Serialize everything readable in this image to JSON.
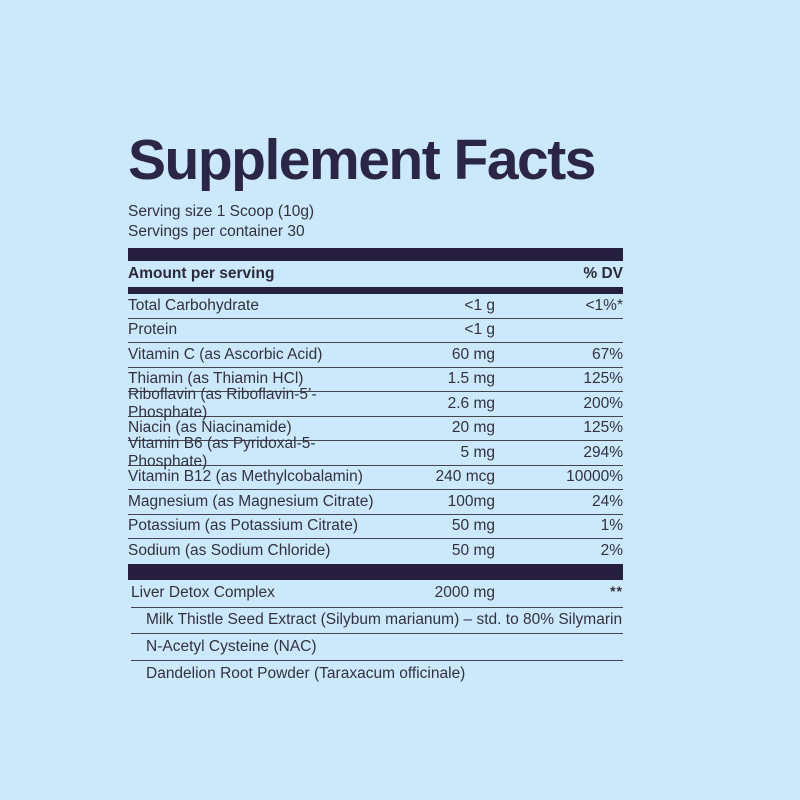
{
  "title": "Supplement Facts",
  "serving": {
    "size": "Serving size 1 Scoop (10g)",
    "per_container": "Servings per container 30"
  },
  "header": {
    "amount": "Amount per serving",
    "dv": "% DV"
  },
  "rows": [
    {
      "name": "Total Carbohydrate",
      "amount": "<1 g",
      "dv": "<1%*"
    },
    {
      "name": "Protein",
      "amount": "<1 g",
      "dv": ""
    },
    {
      "name": "Vitamin C (as Ascorbic Acid)",
      "amount": "60 mg",
      "dv": "67%"
    },
    {
      "name": "Thiamin (as Thiamin HCl)",
      "amount": "1.5 mg",
      "dv": "125%"
    },
    {
      "name": "Riboflavin (as Riboflavin-5’-Phosphate)",
      "amount": "2.6 mg",
      "dv": "200%"
    },
    {
      "name": "Niacin (as Niacinamide)",
      "amount": "20 mg",
      "dv": "125%"
    },
    {
      "name": "Vitamin B6 (as Pyridoxal-5-Phosphate)",
      "amount": "5 mg",
      "dv": "294%"
    },
    {
      "name": "Vitamin B12 (as Methylcobalamin)",
      "amount": "240 mcg",
      "dv": "10000%"
    },
    {
      "name": "Magnesium (as Magnesium Citrate)",
      "amount": "100mg",
      "dv": "24%"
    },
    {
      "name": "Potassium (as Potassium Citrate)",
      "amount": "50 mg",
      "dv": "1%"
    },
    {
      "name": "Sodium (as Sodium Chloride)",
      "amount": "50 mg",
      "dv": "2%"
    }
  ],
  "complex": {
    "name": "Liver Detox Complex",
    "amount": "2000 mg",
    "dv": "**"
  },
  "sub_ingredients": [
    "Milk Thistle Seed Extract (Silybum marianum) – std. to 80% Silymarin",
    "N-Acetyl Cysteine (NAC)",
    "Dandelion Root Powder (Taraxacum officinale)"
  ],
  "colors": {
    "background": "#cce9fb",
    "accent_dark": "#261f3f",
    "text": "#32313f"
  }
}
